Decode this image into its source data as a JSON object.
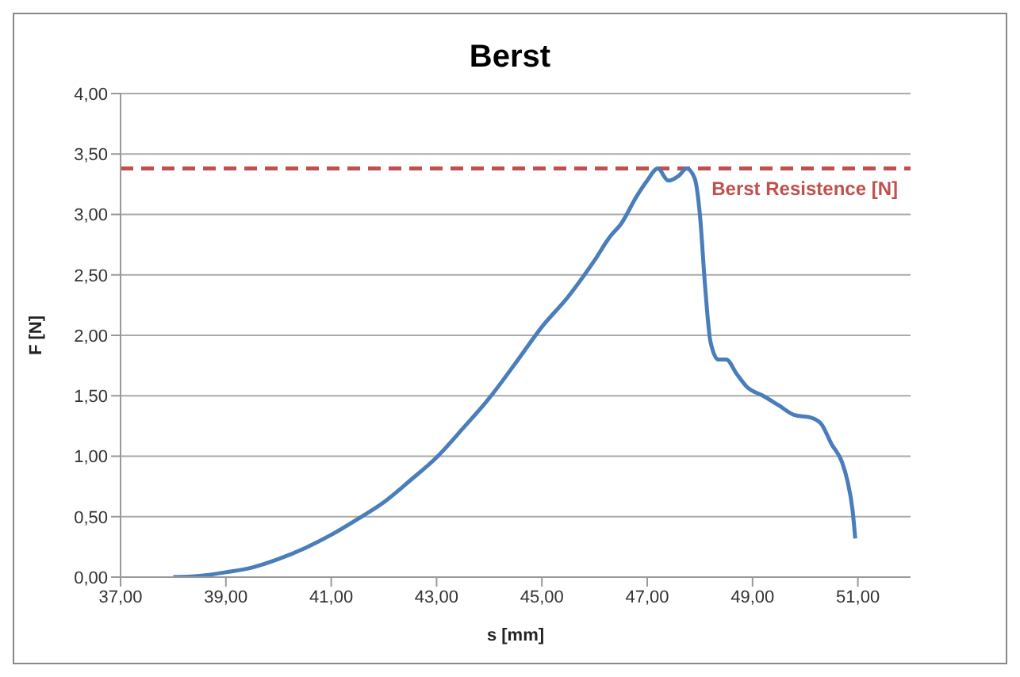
{
  "chart_data": {
    "type": "line",
    "title": "Berst",
    "xlabel": "s [mm]",
    "ylabel": "F [N]",
    "x": [
      38.0,
      38.5,
      39.0,
      39.5,
      40.0,
      40.5,
      41.0,
      41.5,
      42.0,
      42.5,
      43.0,
      43.5,
      44.0,
      44.5,
      45.0,
      45.5,
      46.0,
      46.3,
      46.5,
      46.8,
      47.0,
      47.2,
      47.4,
      47.6,
      47.75,
      47.9,
      48.0,
      48.1,
      48.2,
      48.35,
      48.5,
      48.7,
      48.9,
      49.2,
      49.5,
      49.8,
      50.1,
      50.3,
      50.5,
      50.7,
      50.8,
      50.9,
      50.95
    ],
    "series": [
      {
        "color": "#4a7ebb",
        "values": [
          0,
          0.01,
          0.04,
          0.08,
          0.15,
          0.24,
          0.35,
          0.48,
          0.62,
          0.8,
          0.99,
          1.23,
          1.48,
          1.77,
          2.07,
          2.32,
          2.62,
          2.82,
          2.92,
          3.15,
          3.28,
          3.38,
          3.28,
          3.32,
          3.38,
          3.3,
          3.0,
          2.4,
          1.95,
          1.8,
          1.8,
          1.68,
          1.57,
          1.5,
          1.42,
          1.34,
          1.32,
          1.27,
          1.1,
          0.95,
          0.8,
          0.55,
          0.32
        ]
      }
    ],
    "xlim": [
      37,
      52
    ],
    "xticks": [
      {
        "value": 37,
        "label": "37,00"
      },
      {
        "value": 39,
        "label": "39,00"
      },
      {
        "value": 41,
        "label": "41,00"
      },
      {
        "value": 43,
        "label": "43,00"
      },
      {
        "value": 45,
        "label": "45,00"
      },
      {
        "value": 47,
        "label": "47,00"
      },
      {
        "value": 49,
        "label": "49,00"
      },
      {
        "value": 51,
        "label": "51,00"
      }
    ],
    "ylim": [
      0,
      4
    ],
    "yticks": [
      {
        "value": 0,
        "label": "0,00"
      },
      {
        "value": 0.5,
        "label": "0,50"
      },
      {
        "value": 1,
        "label": "1,00"
      },
      {
        "value": 1.5,
        "label": "1,50"
      },
      {
        "value": 2,
        "label": "2,00"
      },
      {
        "value": 2.5,
        "label": "2,50"
      },
      {
        "value": 3,
        "label": "3,00"
      },
      {
        "value": 3.5,
        "label": "3,50"
      },
      {
        "value": 4,
        "label": "4,00"
      }
    ],
    "ref_lines": [
      {
        "axis": "y",
        "value": 3.38,
        "label": "Berst Resistence [N]",
        "color": "#c0504d",
        "line_style": "dashed"
      }
    ],
    "grid": "y",
    "legend": false,
    "marker": "none",
    "line_style": "solid"
  }
}
